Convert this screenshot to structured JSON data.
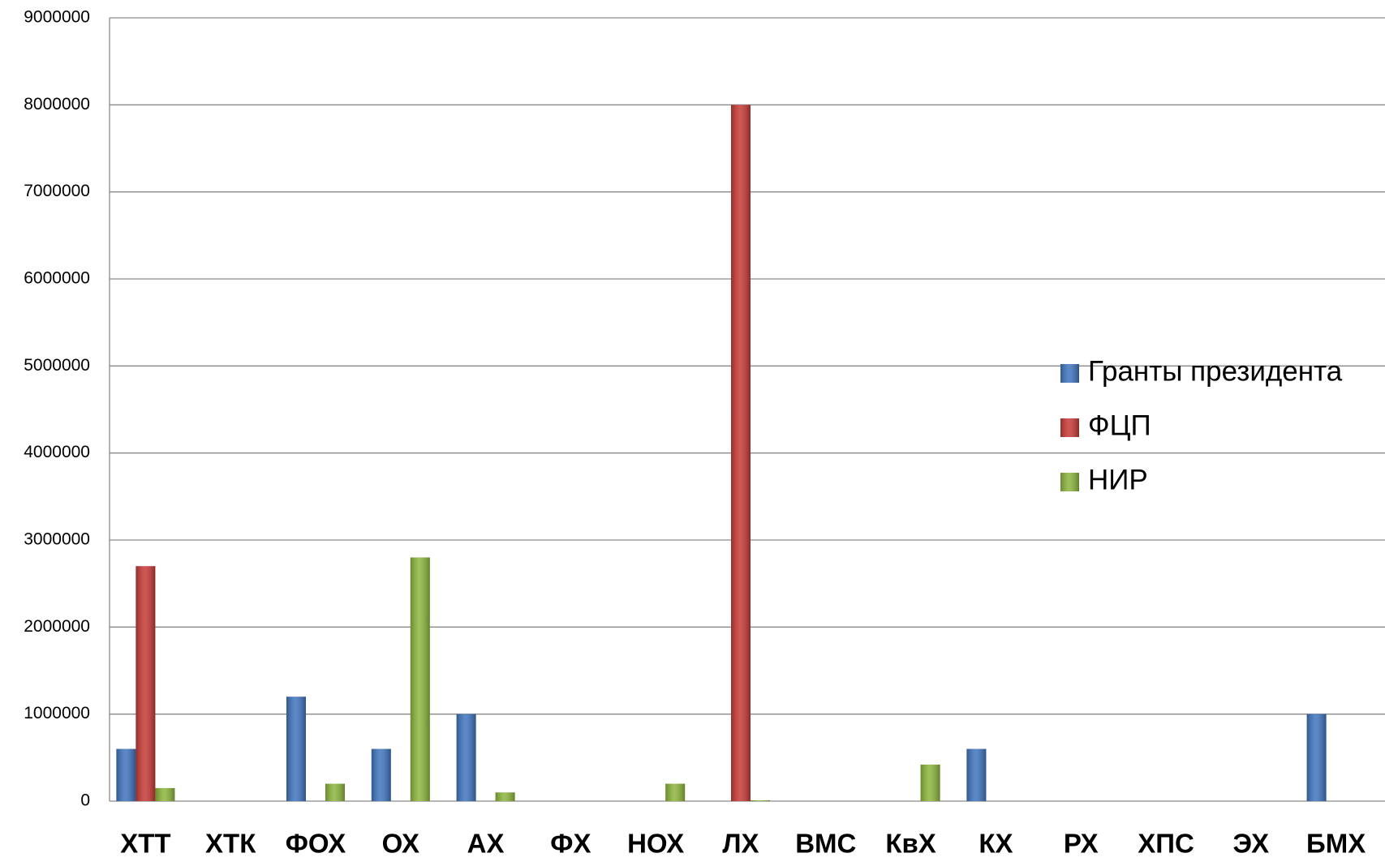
{
  "chart_data": {
    "type": "bar",
    "categories": [
      "ХТТ",
      "ХТК",
      "ФОХ",
      "ОХ",
      "АХ",
      "ФХ",
      "НОХ",
      "ЛХ",
      "ВМС",
      "КвХ",
      "КХ",
      "РХ",
      "ХПС",
      "ЭХ",
      "БМХ"
    ],
    "series": [
      {
        "name": "Гранты президента",
        "color": "#3f75c0",
        "values": [
          600000,
          0,
          1200000,
          600000,
          1000000,
          0,
          0,
          0,
          0,
          0,
          600000,
          0,
          0,
          0,
          1000000
        ]
      },
      {
        "name": "ФЦП",
        "color": "#c83a36",
        "values": [
          2700000,
          0,
          0,
          0,
          0,
          0,
          0,
          8000000,
          0,
          0,
          0,
          0,
          0,
          0,
          0
        ]
      },
      {
        "name": "НИР",
        "color": "#8db63c",
        "values": [
          150000,
          0,
          200000,
          2800000,
          100000,
          0,
          200000,
          10000,
          0,
          420000,
          0,
          0,
          0,
          0,
          0
        ]
      }
    ],
    "ylim": [
      0,
      9000000
    ],
    "yticks": [
      0,
      1000000,
      2000000,
      3000000,
      4000000,
      5000000,
      6000000,
      7000000,
      8000000,
      9000000
    ],
    "grid": true,
    "legend": "right"
  }
}
